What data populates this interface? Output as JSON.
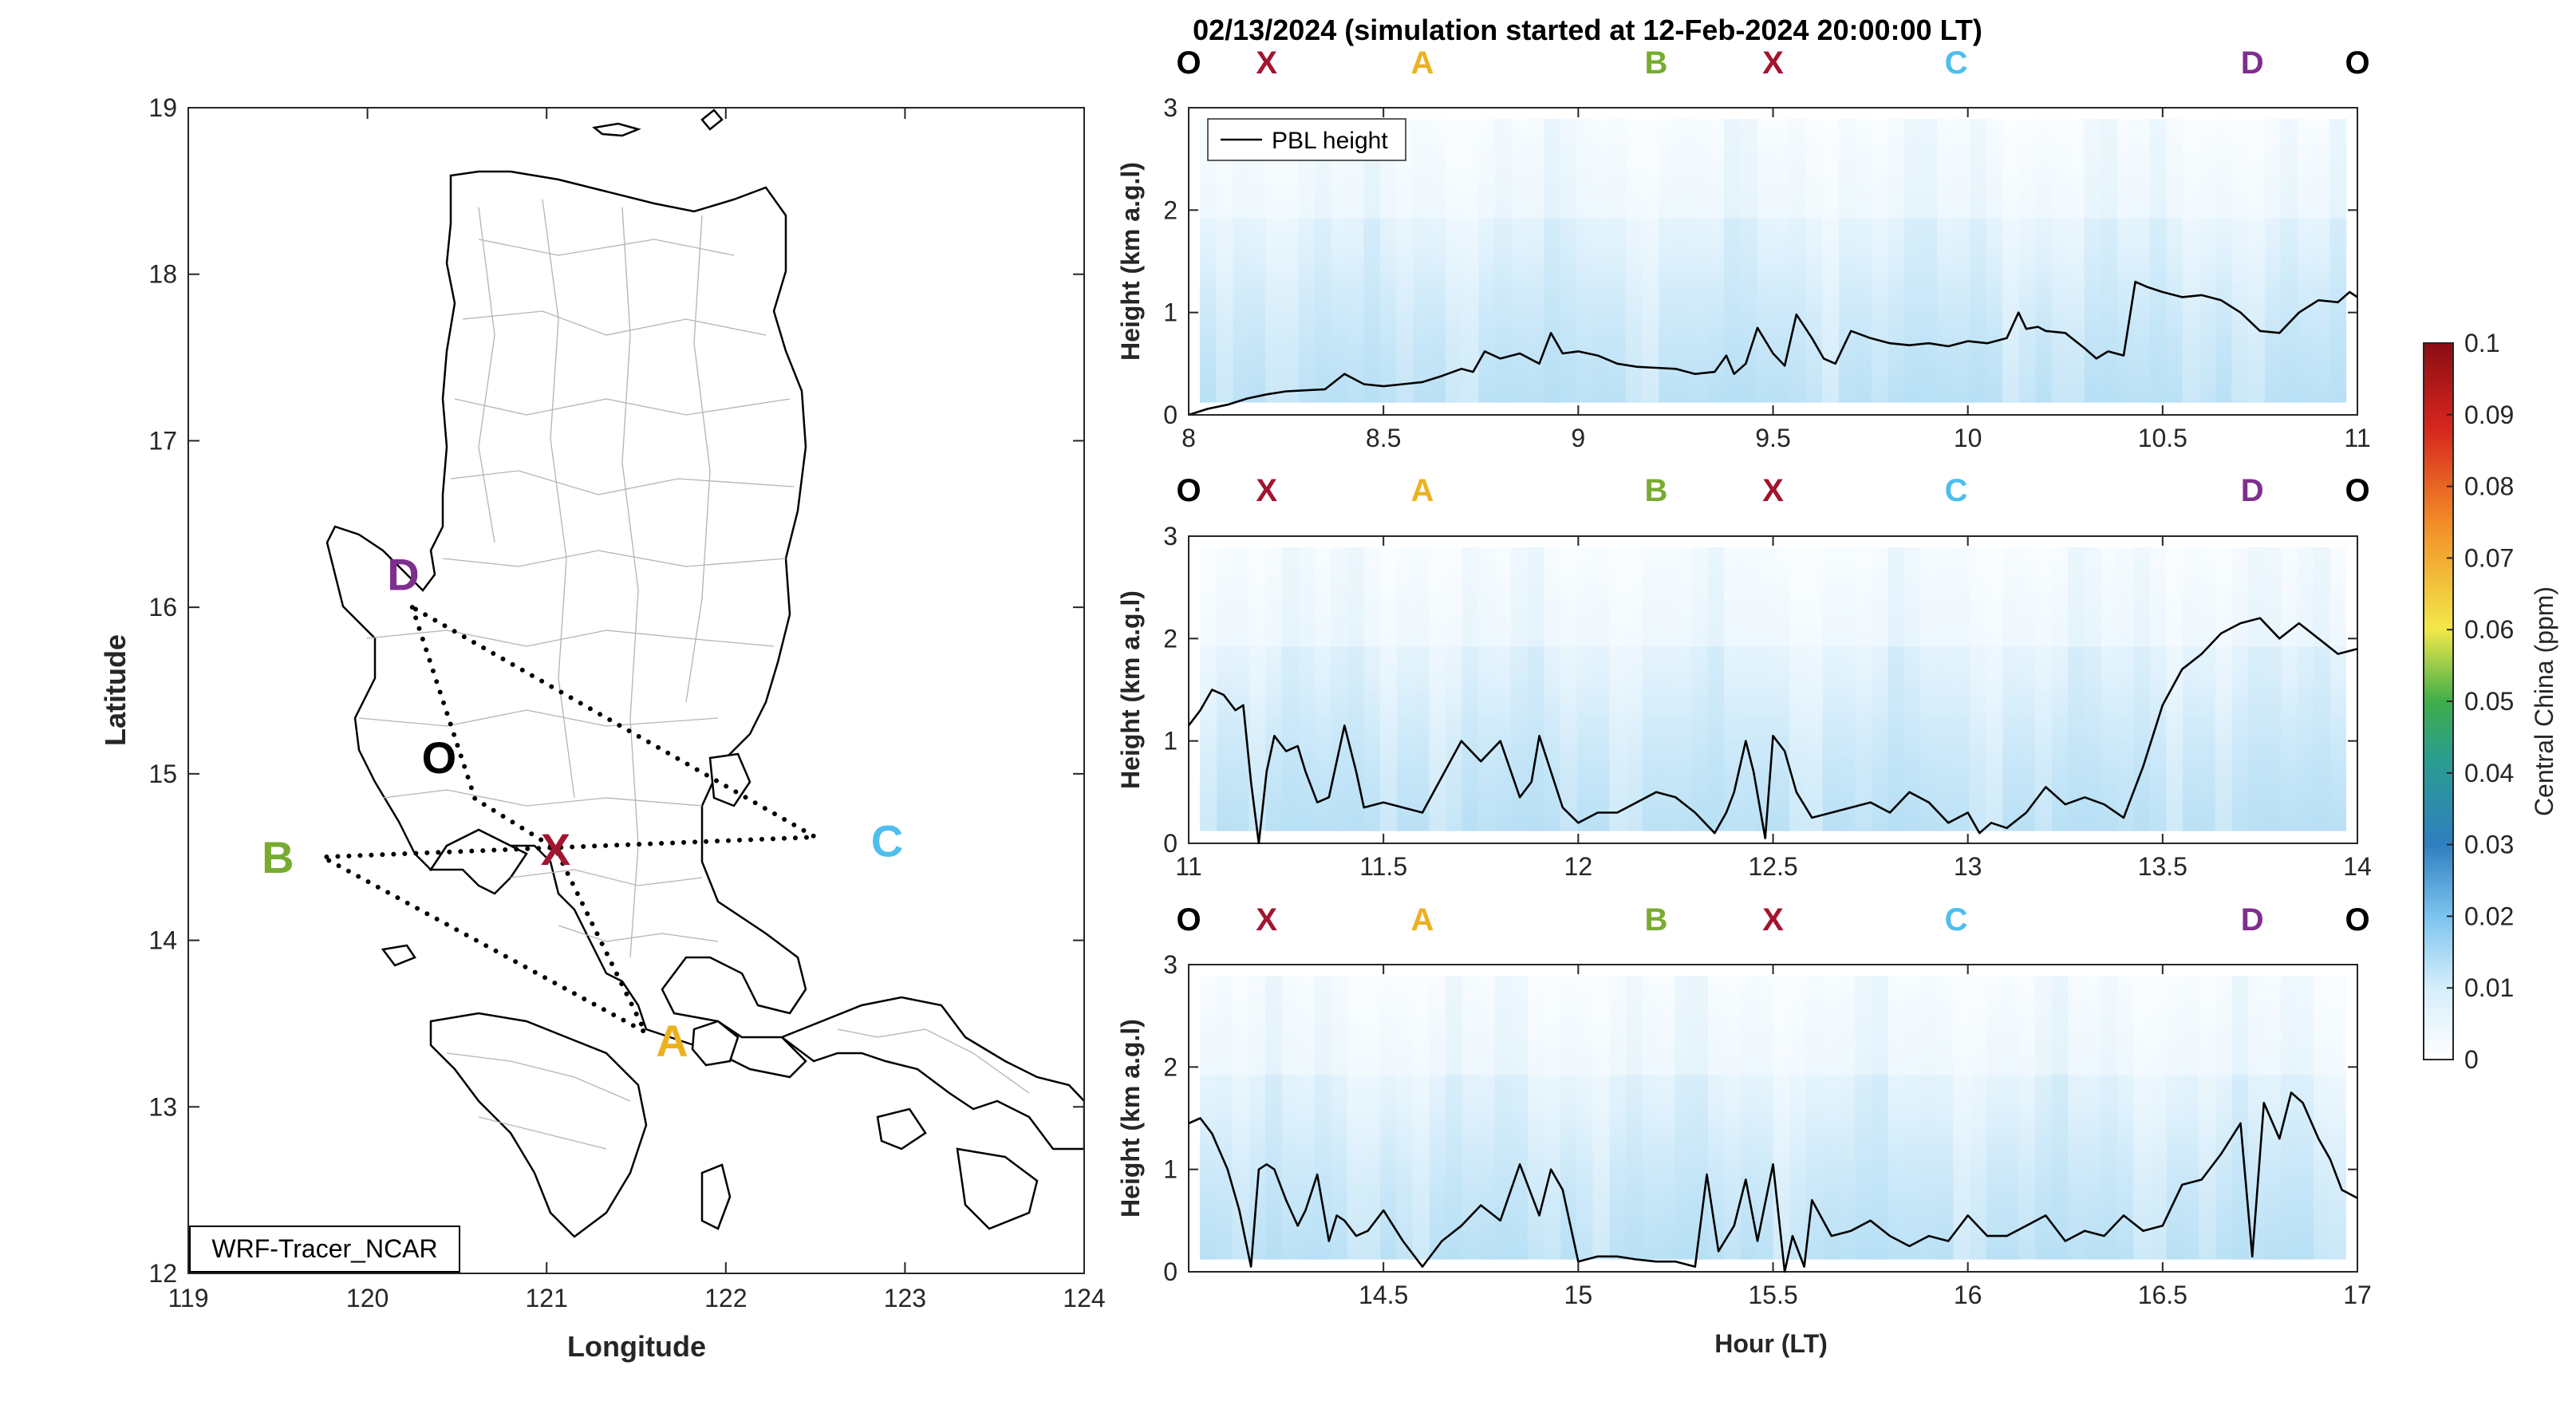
{
  "figure": {
    "title": "02/13/2024 (simulation started at 12-Feb-2024 20:00:00 LT)",
    "colors": {
      "axis": "#262626",
      "pbl_line": "#000000",
      "O": "#000000",
      "X": "#a2142f",
      "A": "#edb120",
      "B": "#77ac30",
      "C": "#4dbeee",
      "D": "#7e2f8e",
      "field_light": "#f4fbff",
      "field_mid": "#d4ecfa",
      "field_dark": "#b6dff5"
    },
    "colorbar": {
      "label": "Central China (ppm)",
      "min": 0,
      "max": 0.1,
      "ticks": [
        "0",
        "0.01",
        "0.02",
        "0.03",
        "0.04",
        "0.05",
        "0.06",
        "0.07",
        "0.08",
        "0.09",
        "0.1"
      ],
      "colormap": "white-blue-green-yellow-orange-red"
    }
  },
  "map": {
    "xlabel": "Longitude",
    "ylabel": "Latitude",
    "xlim": [
      119,
      124
    ],
    "ylim": [
      12,
      19
    ],
    "xticks": [
      "119",
      "120",
      "121",
      "122",
      "123",
      "124"
    ],
    "yticks": [
      "12",
      "13",
      "14",
      "15",
      "16",
      "17",
      "18",
      "19"
    ],
    "model_label": "WRF-Tracer_NCAR",
    "points": [
      {
        "name": "O",
        "lon": 120.4,
        "lat": 15.1,
        "color_key": "O"
      },
      {
        "name": "X",
        "lon": 121.05,
        "lat": 14.55,
        "color_key": "X"
      },
      {
        "name": "A",
        "lon": 121.7,
        "lat": 13.4,
        "color_key": "A"
      },
      {
        "name": "B",
        "lon": 119.5,
        "lat": 14.5,
        "color_key": "B"
      },
      {
        "name": "C",
        "lon": 122.9,
        "lat": 14.6,
        "color_key": "C"
      },
      {
        "name": "D",
        "lon": 120.2,
        "lat": 16.2,
        "color_key": "D"
      }
    ],
    "flight_path": [
      [
        120.25,
        16.0
      ],
      [
        120.6,
        14.85
      ],
      [
        121.05,
        14.55
      ],
      [
        121.55,
        13.45
      ],
      [
        119.75,
        14.5
      ],
      [
        122.5,
        14.62
      ],
      [
        120.25,
        16.0
      ]
    ]
  },
  "chart_data": [
    {
      "type": "line",
      "title": "",
      "xlabel": "",
      "ylabel": "Height (km a.g.l)",
      "xlim": [
        8,
        11
      ],
      "ylim": [
        0,
        3
      ],
      "xticks": [
        "8",
        "8.5",
        "9",
        "9.5",
        "10",
        "10.5",
        "11"
      ],
      "yticks": [
        "0",
        "1",
        "2",
        "3"
      ],
      "legend": "PBL height",
      "legend_position": "top-left",
      "waypoints": [
        {
          "label": "O",
          "x": 8.0,
          "color_key": "O"
        },
        {
          "label": "X",
          "x": 8.2,
          "color_key": "X"
        },
        {
          "label": "A",
          "x": 8.6,
          "color_key": "A"
        },
        {
          "label": "B",
          "x": 9.2,
          "color_key": "B"
        },
        {
          "label": "X",
          "x": 9.5,
          "color_key": "X"
        },
        {
          "label": "C",
          "x": 9.97,
          "color_key": "C"
        },
        {
          "label": "D",
          "x": 10.73,
          "color_key": "D"
        },
        {
          "label": "O",
          "x": 11.0,
          "color_key": "O"
        }
      ],
      "series": [
        {
          "name": "PBL height",
          "x": [
            8.0,
            8.05,
            8.1,
            8.15,
            8.2,
            8.25,
            8.3,
            8.35,
            8.4,
            8.45,
            8.5,
            8.55,
            8.6,
            8.65,
            8.7,
            8.73,
            8.76,
            8.8,
            8.85,
            8.9,
            8.93,
            8.96,
            9.0,
            9.05,
            9.1,
            9.15,
            9.2,
            9.25,
            9.3,
            9.35,
            9.38,
            9.4,
            9.43,
            9.46,
            9.5,
            9.53,
            9.56,
            9.6,
            9.63,
            9.66,
            9.7,
            9.75,
            9.8,
            9.85,
            9.9,
            9.95,
            10.0,
            10.05,
            10.1,
            10.13,
            10.15,
            10.18,
            10.2,
            10.25,
            10.3,
            10.33,
            10.36,
            10.4,
            10.43,
            10.46,
            10.5,
            10.55,
            10.6,
            10.65,
            10.7,
            10.75,
            10.8,
            10.85,
            10.9,
            10.95,
            10.98,
            11.0
          ],
          "y": [
            0.0,
            0.06,
            0.1,
            0.16,
            0.2,
            0.23,
            0.24,
            0.25,
            0.4,
            0.3,
            0.28,
            0.3,
            0.32,
            0.38,
            0.45,
            0.42,
            0.62,
            0.55,
            0.6,
            0.5,
            0.8,
            0.6,
            0.62,
            0.58,
            0.5,
            0.47,
            0.46,
            0.45,
            0.4,
            0.42,
            0.58,
            0.4,
            0.5,
            0.85,
            0.6,
            0.48,
            0.98,
            0.75,
            0.55,
            0.5,
            0.82,
            0.75,
            0.7,
            0.68,
            0.7,
            0.67,
            0.72,
            0.7,
            0.75,
            1.0,
            0.84,
            0.86,
            0.82,
            0.8,
            0.65,
            0.55,
            0.62,
            0.58,
            1.3,
            1.25,
            1.2,
            1.15,
            1.17,
            1.12,
            1.0,
            0.82,
            0.8,
            1.0,
            1.12,
            1.1,
            1.2,
            1.15
          ]
        }
      ]
    },
    {
      "type": "line",
      "title": "",
      "xlabel": "",
      "ylabel": "Height (km a.g.l)",
      "xlim": [
        11,
        14
      ],
      "ylim": [
        0,
        3
      ],
      "xticks": [
        "11",
        "11.5",
        "12",
        "12.5",
        "13",
        "13.5",
        "14"
      ],
      "yticks": [
        "0",
        "1",
        "2",
        "3"
      ],
      "waypoints": [
        {
          "label": "O",
          "x": 11.0,
          "color_key": "O"
        },
        {
          "label": "X",
          "x": 11.2,
          "color_key": "X"
        },
        {
          "label": "A",
          "x": 11.6,
          "color_key": "A"
        },
        {
          "label": "B",
          "x": 12.2,
          "color_key": "B"
        },
        {
          "label": "X",
          "x": 12.5,
          "color_key": "X"
        },
        {
          "label": "C",
          "x": 12.97,
          "color_key": "C"
        },
        {
          "label": "D",
          "x": 13.73,
          "color_key": "D"
        },
        {
          "label": "O",
          "x": 14.0,
          "color_key": "O"
        }
      ],
      "series": [
        {
          "name": "PBL height",
          "x": [
            11.0,
            11.03,
            11.06,
            11.09,
            11.12,
            11.14,
            11.16,
            11.18,
            11.2,
            11.22,
            11.25,
            11.28,
            11.3,
            11.33,
            11.36,
            11.4,
            11.43,
            11.45,
            11.48,
            11.5,
            11.55,
            11.6,
            11.65,
            11.7,
            11.75,
            11.8,
            11.85,
            11.88,
            11.9,
            11.93,
            11.96,
            12.0,
            12.05,
            12.1,
            12.15,
            12.2,
            12.25,
            12.3,
            12.35,
            12.38,
            12.4,
            12.43,
            12.45,
            12.48,
            12.5,
            12.53,
            12.56,
            12.6,
            12.65,
            12.7,
            12.75,
            12.8,
            12.85,
            12.9,
            12.95,
            13.0,
            13.03,
            13.06,
            13.1,
            13.15,
            13.2,
            13.25,
            13.3,
            13.35,
            13.4,
            13.45,
            13.5,
            13.55,
            13.6,
            13.65,
            13.7,
            13.75,
            13.8,
            13.85,
            13.9,
            13.95,
            14.0
          ],
          "y": [
            1.15,
            1.3,
            1.5,
            1.45,
            1.3,
            1.35,
            0.6,
            0.0,
            0.7,
            1.05,
            0.9,
            0.95,
            0.7,
            0.4,
            0.45,
            1.15,
            0.7,
            0.35,
            0.38,
            0.4,
            0.35,
            0.3,
            0.65,
            1.0,
            0.8,
            1.0,
            0.45,
            0.6,
            1.05,
            0.7,
            0.35,
            0.2,
            0.3,
            0.3,
            0.4,
            0.5,
            0.45,
            0.3,
            0.1,
            0.3,
            0.5,
            1.0,
            0.7,
            0.05,
            1.05,
            0.9,
            0.5,
            0.25,
            0.3,
            0.35,
            0.4,
            0.3,
            0.5,
            0.4,
            0.2,
            0.3,
            0.1,
            0.2,
            0.15,
            0.3,
            0.55,
            0.38,
            0.45,
            0.38,
            0.25,
            0.75,
            1.35,
            1.7,
            1.85,
            2.05,
            2.15,
            2.2,
            2.0,
            2.15,
            2.0,
            1.85,
            1.9
          ]
        }
      ]
    },
    {
      "type": "line",
      "title": "",
      "xlabel": "Hour (LT)",
      "ylabel": "Height (km a.g.l)",
      "xlim": [
        14,
        17
      ],
      "ylim": [
        0,
        3
      ],
      "xticks": [
        "14.5",
        "15",
        "15.5",
        "16",
        "16.5",
        "17"
      ],
      "yticks": [
        "0",
        "1",
        "2",
        "3"
      ],
      "waypoints": [
        {
          "label": "O",
          "x": 14.0,
          "color_key": "O"
        },
        {
          "label": "X",
          "x": 14.2,
          "color_key": "X"
        },
        {
          "label": "A",
          "x": 14.6,
          "color_key": "A"
        },
        {
          "label": "B",
          "x": 15.2,
          "color_key": "B"
        },
        {
          "label": "X",
          "x": 15.5,
          "color_key": "X"
        },
        {
          "label": "C",
          "x": 15.97,
          "color_key": "C"
        },
        {
          "label": "D",
          "x": 16.73,
          "color_key": "D"
        },
        {
          "label": "O",
          "x": 17.0,
          "color_key": "O"
        }
      ],
      "series": [
        {
          "name": "PBL height",
          "x": [
            14.0,
            14.03,
            14.06,
            14.1,
            14.13,
            14.16,
            14.18,
            14.2,
            14.22,
            14.25,
            14.28,
            14.3,
            14.33,
            14.36,
            14.38,
            14.4,
            14.43,
            14.46,
            14.5,
            14.55,
            14.6,
            14.65,
            14.7,
            14.75,
            14.8,
            14.85,
            14.9,
            14.93,
            14.96,
            15.0,
            15.05,
            15.1,
            15.15,
            15.2,
            15.25,
            15.3,
            15.33,
            15.36,
            15.4,
            15.43,
            15.46,
            15.5,
            15.53,
            15.55,
            15.58,
            15.6,
            15.65,
            15.7,
            15.75,
            15.8,
            15.85,
            15.9,
            15.95,
            16.0,
            16.05,
            16.1,
            16.15,
            16.2,
            16.25,
            16.3,
            16.35,
            16.4,
            16.45,
            16.5,
            16.55,
            16.6,
            16.65,
            16.7,
            16.73,
            16.76,
            16.8,
            16.83,
            16.86,
            16.9,
            16.93,
            16.96,
            17.0
          ],
          "y": [
            1.45,
            1.5,
            1.35,
            1.0,
            0.6,
            0.05,
            1.0,
            1.05,
            1.0,
            0.7,
            0.45,
            0.6,
            0.95,
            0.3,
            0.55,
            0.5,
            0.35,
            0.4,
            0.6,
            0.3,
            0.05,
            0.3,
            0.45,
            0.65,
            0.5,
            1.05,
            0.55,
            1.0,
            0.8,
            0.1,
            0.15,
            0.15,
            0.12,
            0.1,
            0.1,
            0.05,
            0.95,
            0.2,
            0.45,
            0.9,
            0.3,
            1.05,
            0.0,
            0.35,
            0.05,
            0.7,
            0.35,
            0.4,
            0.5,
            0.35,
            0.25,
            0.35,
            0.3,
            0.55,
            0.35,
            0.35,
            0.45,
            0.55,
            0.3,
            0.4,
            0.35,
            0.55,
            0.4,
            0.45,
            0.85,
            0.9,
            1.15,
            1.45,
            0.15,
            1.65,
            1.3,
            1.75,
            1.65,
            1.3,
            1.1,
            0.8,
            0.72
          ]
        }
      ]
    }
  ]
}
